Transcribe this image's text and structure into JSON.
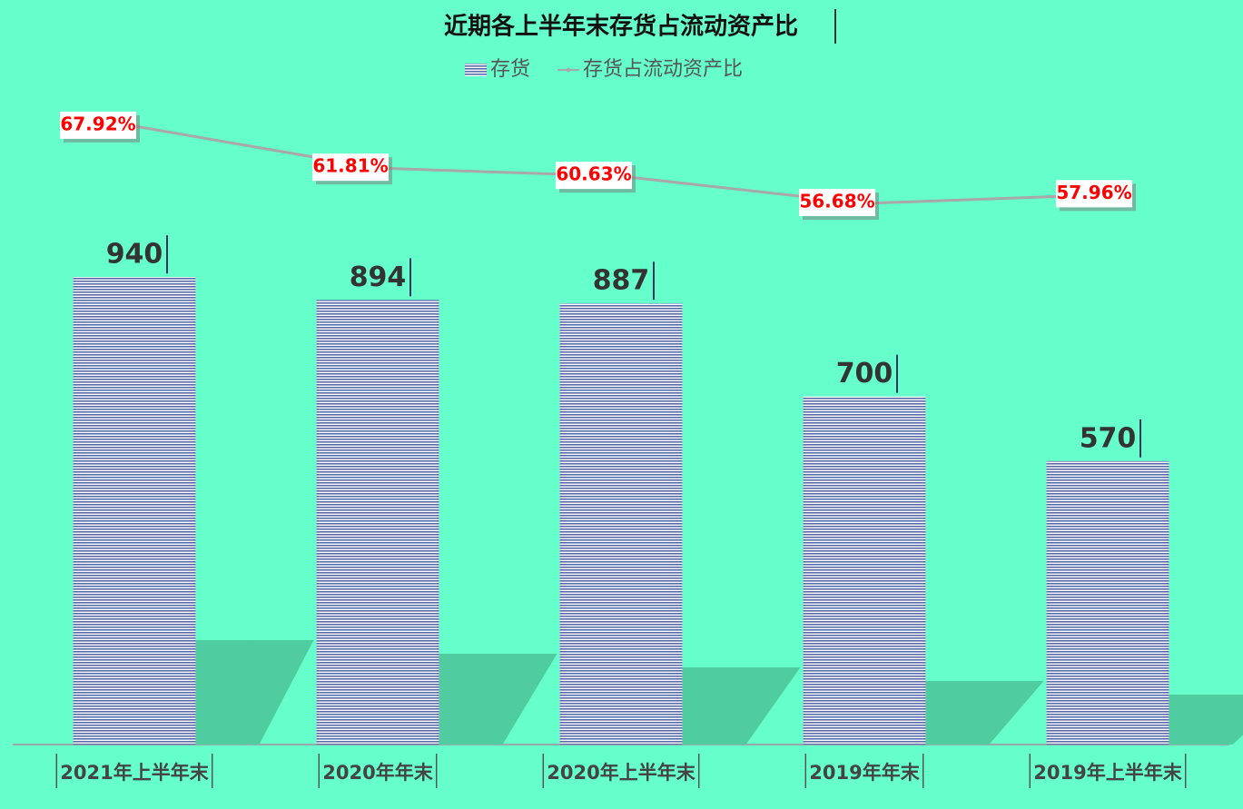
{
  "chart_data": {
    "type": "bar-line",
    "title": "近期各上半年末存货占流动资产比",
    "categories": [
      "2021年上半年末",
      "2020年年末",
      "2020年上半年末",
      "2019年年末",
      "2019年上半年末"
    ],
    "series": [
      {
        "name": "存货",
        "type": "bar",
        "color": "#5a6aa8",
        "values": [
          940,
          894,
          887,
          700,
          570
        ]
      },
      {
        "name": "存货占流动资产比",
        "type": "line",
        "axis": "y2",
        "color": "#a8a8a8",
        "values": [
          67.92,
          61.81,
          60.63,
          56.68,
          57.96
        ],
        "value_labels": [
          "67.92%",
          "61.81%",
          "60.63%",
          "56.68%",
          "57.96%"
        ]
      }
    ],
    "ylim": [
      0,
      1300
    ],
    "y2lim": [
      -22,
      72
    ],
    "legend": "top"
  }
}
